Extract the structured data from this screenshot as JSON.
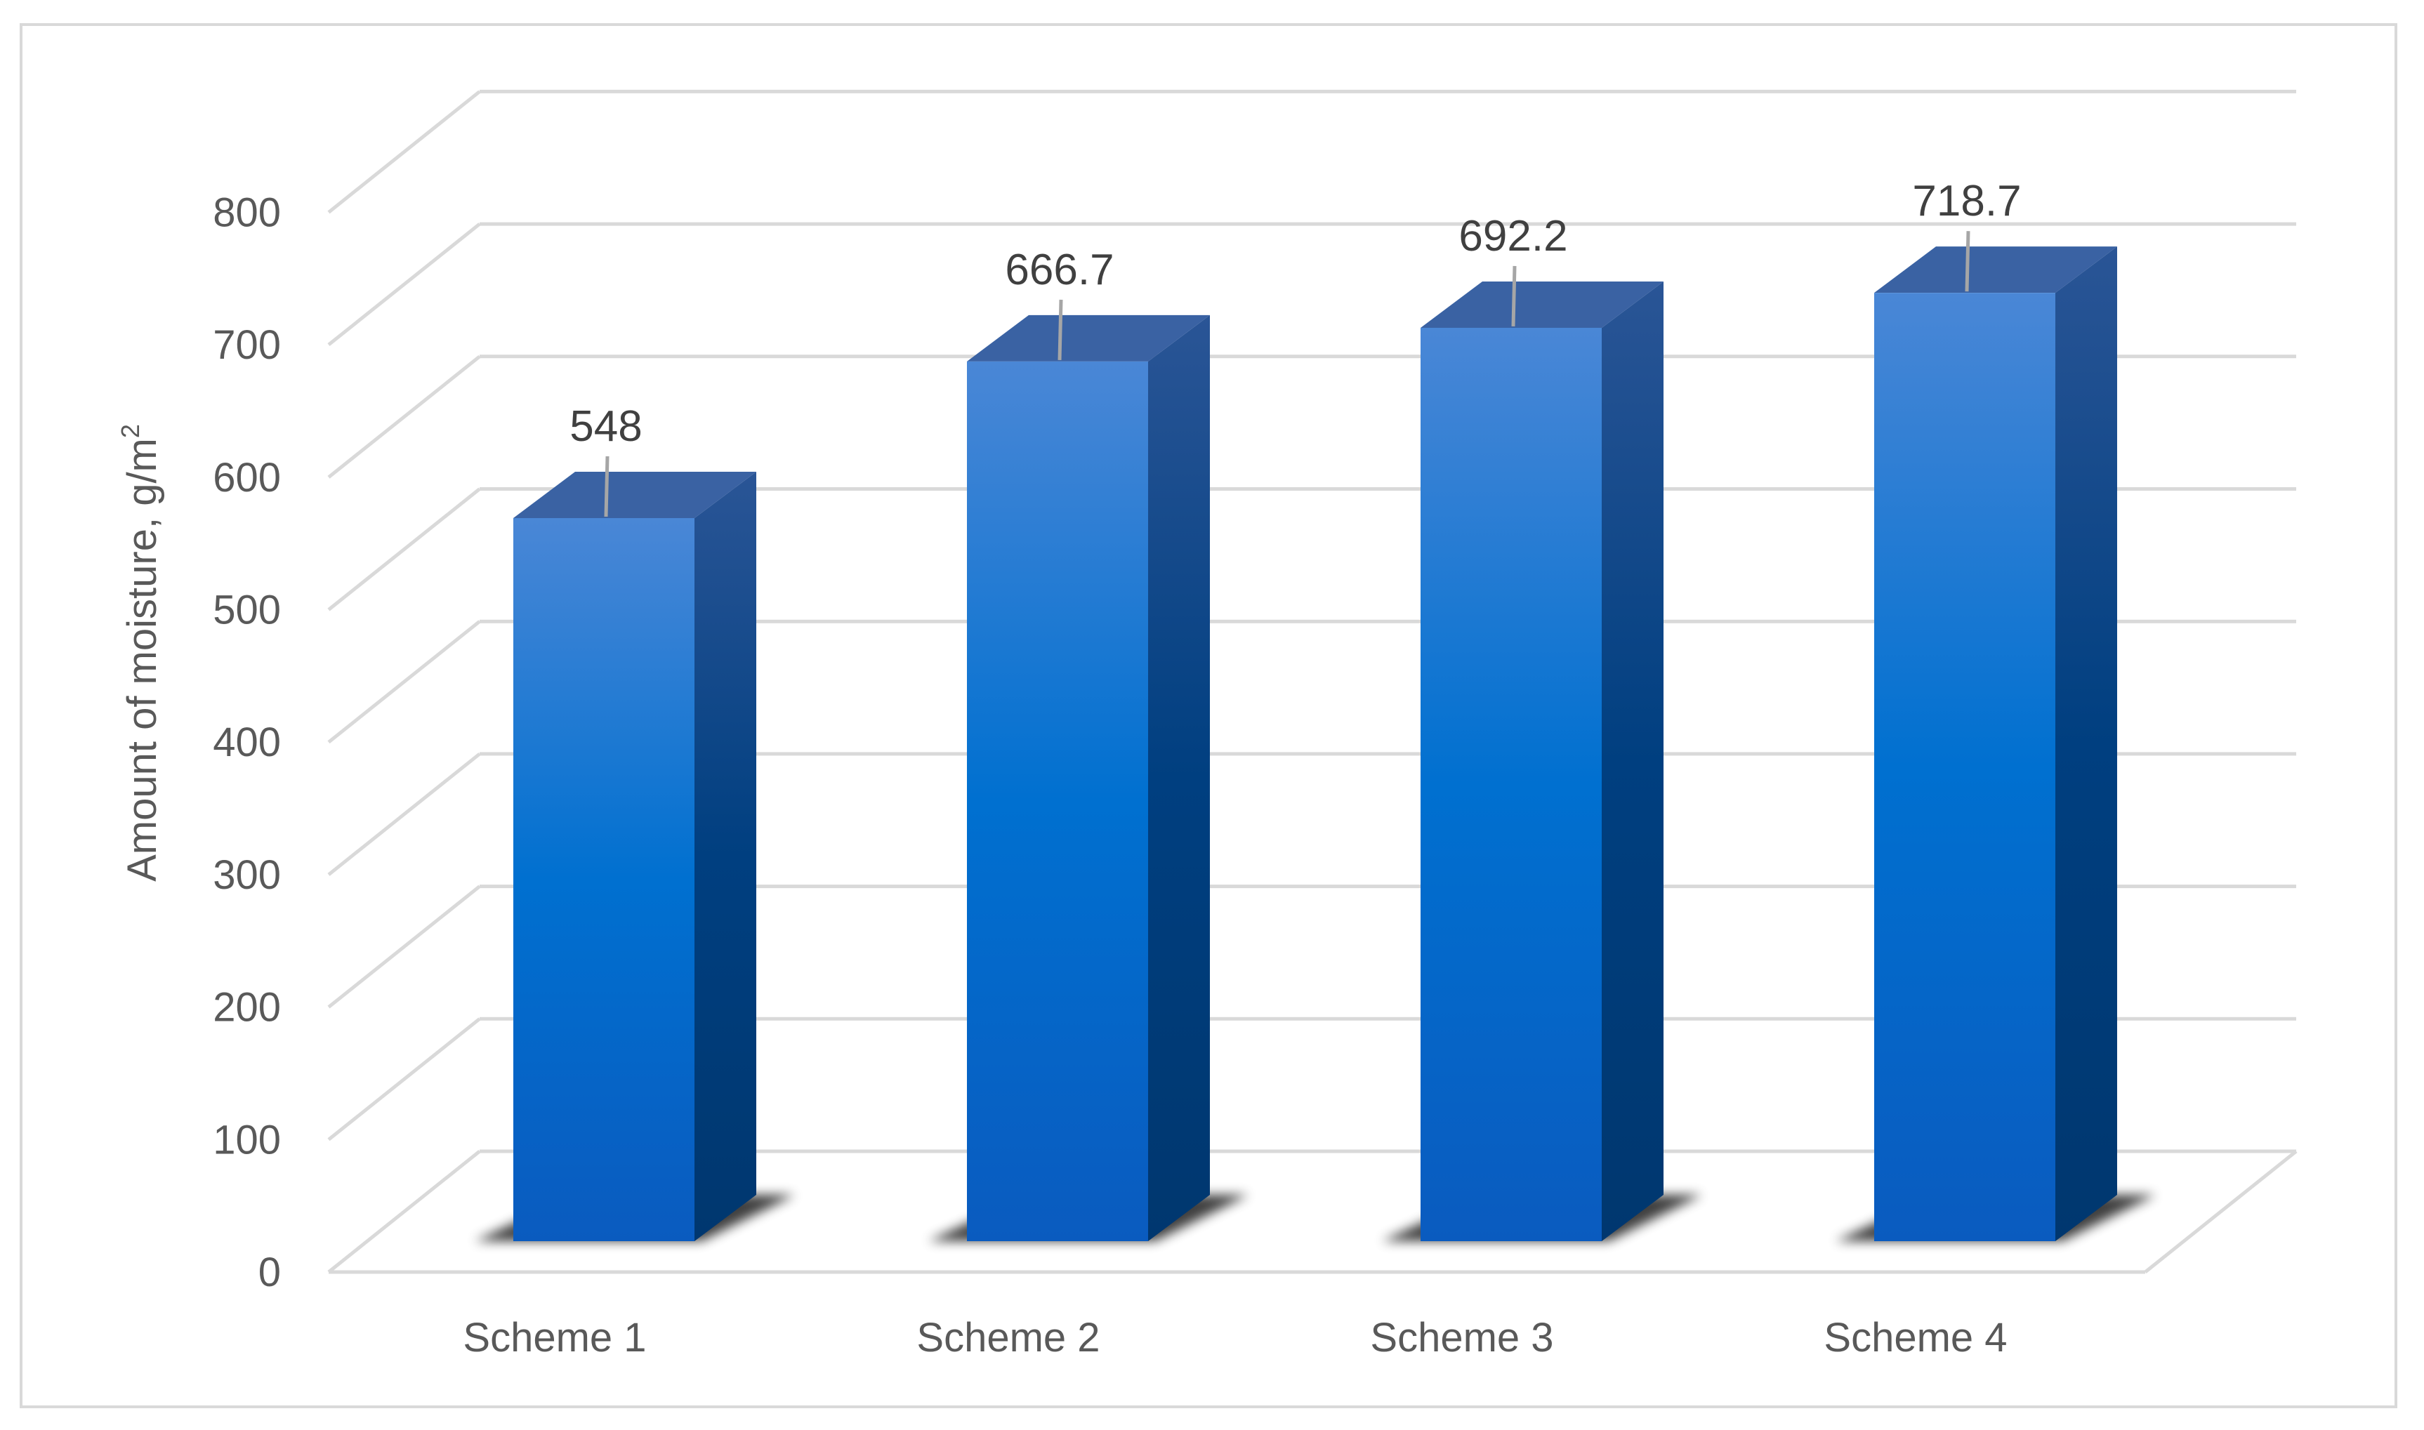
{
  "chart_data": {
    "type": "bar",
    "style": "3d-column",
    "categories": [
      "Scheme 1",
      "Scheme 2",
      "Scheme 3",
      "Scheme 4"
    ],
    "values": [
      548,
      666.7,
      692.2,
      718.7
    ],
    "value_labels": [
      "548",
      "666.7",
      "692.2",
      "718.7"
    ],
    "ylabel_main": "Amount of moisture, g/m",
    "ylabel_sup": "2",
    "ylim": [
      0,
      800
    ],
    "yticks": [
      0,
      100,
      200,
      300,
      400,
      500,
      600,
      700,
      800
    ],
    "ytick_labels": [
      "0",
      "100",
      "200",
      "300",
      "400",
      "500",
      "600",
      "700",
      "800"
    ],
    "grid": true,
    "legend": "none",
    "colors": {
      "bar_front_top": "#4a87d6",
      "bar_front_mid": "#0070d0",
      "bar_front_bottom": "#0a5bbf",
      "bar_side": "#1f4d8a",
      "bar_top": "#3a62a3",
      "grid": "#d9d9d9",
      "text": "#595959"
    }
  }
}
